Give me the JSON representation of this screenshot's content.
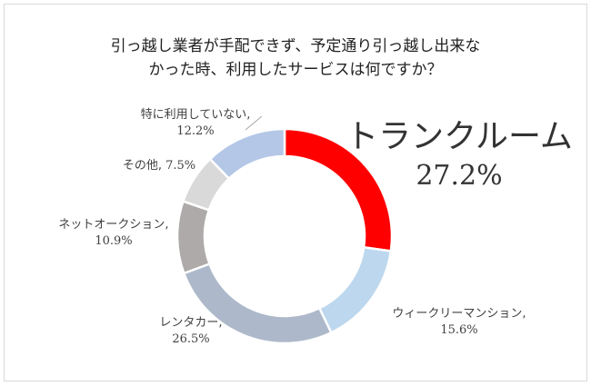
{
  "chart_data": {
    "type": "pie",
    "variant": "donut",
    "title_lines": [
      "引っ越し業者が手配できず、予定通り引っ越し出来な",
      "かった時、利用したサービスは何ですか？"
    ],
    "slices": [
      {
        "label": "トランクルーム",
        "value": 27.2,
        "display": "27.2%",
        "color": "#FF0000"
      },
      {
        "label": "ウィークリーマンション,",
        "value": 15.6,
        "display": "15.6%",
        "color": "#BDD7EE"
      },
      {
        "label": "レンタカー,",
        "value": 26.5,
        "display": "26.5%",
        "color": "#ADB9CA"
      },
      {
        "label": "ネットオークション,",
        "value": 10.9,
        "display": "10.9%",
        "color": "#AEAAAA"
      },
      {
        "label": "その他,",
        "value": 7.5,
        "display": "7.5%",
        "color": "#D9D9D9"
      },
      {
        "label": "特に利用していない,",
        "value": 12.2,
        "display": "12.2%",
        "color": "#B4C7E7"
      }
    ],
    "legend": "none"
  }
}
